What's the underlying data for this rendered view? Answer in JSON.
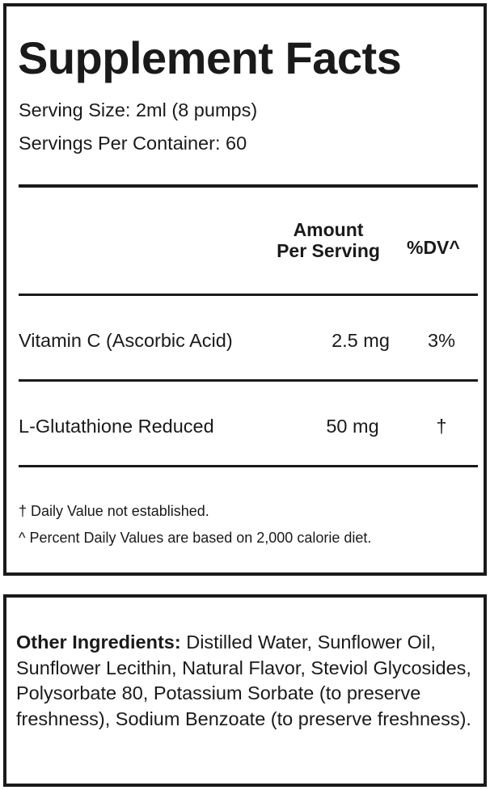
{
  "facts": {
    "title": "Supplement Facts",
    "serving_size": "Serving Size: 2ml (8 pumps)",
    "servings_per_container": "Servings Per Container: 60",
    "header": {
      "amount_line1": "Amount",
      "amount_line2": "Per Serving",
      "dv": "%DV^"
    },
    "rows": [
      {
        "name": "Vitamin C (Ascorbic Acid)",
        "amount": "2.5 mg",
        "dv": "3%"
      },
      {
        "name": "L-Glutathione Reduced",
        "amount": "50 mg",
        "dv": "†"
      }
    ],
    "footnotes": [
      "† Daily Value not established.",
      "^ Percent Daily Values are based on 2,000 calorie diet."
    ]
  },
  "ingredients": {
    "label": "Other Ingredients:",
    "text": " Distilled Water, Sunflower Oil, Sunflower Lecithin, Natural Flavor, Steviol Glycosides, Polysorbate 80, Potassium Sorbate (to preserve freshness), Sodium Benzoate (to preserve freshness)."
  }
}
